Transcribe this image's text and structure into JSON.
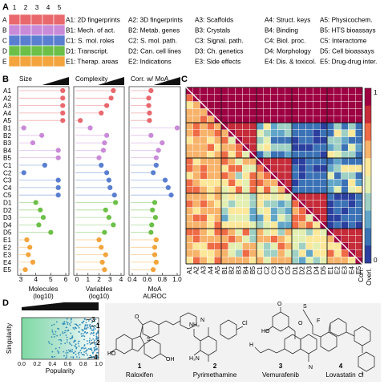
{
  "panels": {
    "a": "A",
    "b": "B",
    "c": "C",
    "d": "D"
  },
  "panel_a": {
    "col_numbers": [
      "1",
      "2",
      "3",
      "4",
      "5"
    ],
    "rows": [
      {
        "letter": "A",
        "color": "#e8686d"
      },
      {
        "letter": "B",
        "color": "#c98ad8"
      },
      {
        "letter": "C",
        "color": "#5a7fd0"
      },
      {
        "letter": "D",
        "color": "#6cc048"
      },
      {
        "letter": "E",
        "color": "#f3a43c"
      }
    ],
    "legend": [
      [
        "A1: 2D fingerprints",
        "A2: 3D fingerprints",
        "A3: Scaffolds",
        "A4: Struct. keys",
        "A5: Physicochem."
      ],
      [
        "B1: Mech. of act.",
        "B2: Metab. genes",
        "B3: Crystals",
        "B4: Binding",
        "B5: HTS bioassays"
      ],
      [
        "C1: S. mol. roles",
        "C2: S. mol. path.",
        "C3: Signal. path.",
        "C4: Biol. proc.",
        "C5: Interactome"
      ],
      [
        "D1: Transcript.",
        "D2: Can. cell lines",
        "D3: Ch. genetics",
        "D4: Morphology",
        "D5: Cell bioassays"
      ],
      [
        "E1: Therap. areas",
        "E2: Indications",
        "E3: Side effects",
        "E4: Dis. & toxicol.",
        "E5: Drug-drug inter."
      ]
    ]
  },
  "panel_b": {
    "row_labels": [
      "A1",
      "A2",
      "A3",
      "A4",
      "A5",
      "B1",
      "B2",
      "B3",
      "B4",
      "B5",
      "C1",
      "C2",
      "C3",
      "C4",
      "C5",
      "D1",
      "D2",
      "D3",
      "D4",
      "D5",
      "E1",
      "E2",
      "E3",
      "E4",
      "E5"
    ],
    "row_colors": [
      "#e8686d",
      "#e8686d",
      "#e8686d",
      "#e8686d",
      "#e8686d",
      "#c98ad8",
      "#c98ad8",
      "#c98ad8",
      "#c98ad8",
      "#c98ad8",
      "#5a7fd0",
      "#5a7fd0",
      "#5a7fd0",
      "#5a7fd0",
      "#5a7fd0",
      "#6cc048",
      "#6cc048",
      "#6cc048",
      "#6cc048",
      "#6cc048",
      "#f3a43c",
      "#f3a43c",
      "#f3a43c",
      "#f3a43c",
      "#f3a43c"
    ],
    "tracks": [
      {
        "title": "Size",
        "xlabel": "Molecules",
        "xlabel2": "(log10)",
        "xlim": [
          3,
          6
        ],
        "ticks": [
          "3",
          "4",
          "5",
          "6"
        ],
        "values": [
          5.8,
          5.8,
          5.8,
          5.8,
          5.8,
          3.2,
          4.4,
          3.8,
          5.5,
          5.5,
          4.6,
          3.2,
          5.5,
          5.5,
          5.5,
          4.0,
          4.3,
          4.5,
          4.2,
          5.0,
          3.4,
          3.6,
          3.5,
          3.8,
          3.3
        ]
      },
      {
        "title": "Complexity",
        "xlabel": "Variables",
        "xlabel2": "(log10)",
        "xlim": [
          0,
          4
        ],
        "ticks": [
          "0",
          "1",
          "2",
          "3",
          "4"
        ],
        "values": [
          3.3,
          3.1,
          2.7,
          2.2,
          0.3,
          1.2,
          2.7,
          2.5,
          2.4,
          2.0,
          2.2,
          2.7,
          2.9,
          3.0,
          3.4,
          3.5,
          2.6,
          2.9,
          3.3,
          2.5,
          2.0,
          2.2,
          2.6,
          2.3,
          2.5
        ]
      },
      {
        "title": "Corr. w/ MoA",
        "xlabel": "MoA",
        "xlabel2": "AUROC",
        "xlim": [
          0.4,
          1.0
        ],
        "ticks": [
          "0.4",
          "0.6",
          "0.8",
          "1.0"
        ],
        "values": [
          0.65,
          0.62,
          0.62,
          0.63,
          0.63,
          1.0,
          0.65,
          0.8,
          0.75,
          0.72,
          0.72,
          0.68,
          0.84,
          0.88,
          0.92,
          0.7,
          0.67,
          0.71,
          0.66,
          0.65,
          0.72,
          0.7,
          0.7,
          0.72,
          0.68
        ]
      }
    ]
  },
  "panel_c": {
    "labels": [
      "A1",
      "A2",
      "A3",
      "A4",
      "A5",
      "B1",
      "B2",
      "B3",
      "B4",
      "B5",
      "C1",
      "C2",
      "C3",
      "C4",
      "C5",
      "D1",
      "D2",
      "D3",
      "D4",
      "D5",
      "E1",
      "E2",
      "E3",
      "E4",
      "E5"
    ],
    "colorbar_ticks": [
      "1",
      "0"
    ],
    "colorbar_labels": [
      "Corr.",
      "Overl."
    ],
    "colors": [
      "#2b3f9e",
      "#3b72b6",
      "#61a6c9",
      "#9fd0c4",
      "#e3efb0",
      "#fde89a",
      "#f8b36b",
      "#ee6b46",
      "#c62b39",
      "#9e0142"
    ]
  },
  "panel_d": {
    "ylabel": "Singularity",
    "xlabel": "Popularity",
    "ticks": [
      "0.0",
      "0.2",
      "0.4",
      "0.6",
      "0.8",
      "1.0"
    ],
    "markers": [
      "1",
      "2",
      "3",
      "4"
    ],
    "molecules": [
      {
        "number": "1",
        "name": "Raloxifen"
      },
      {
        "number": "2",
        "name": "Pyrimethamine"
      },
      {
        "number": "3",
        "name": "Vemurafenib"
      },
      {
        "number": "4",
        "name": "Lovastatin"
      }
    ],
    "struct_labels": [
      "HO",
      "OH",
      "O",
      "N",
      "S",
      "Cl",
      "NH₂",
      "H₂N",
      "O",
      "HO",
      "H",
      "N",
      "S",
      "F",
      "Cl",
      "O"
    ]
  },
  "chart_data": [
    {
      "type": "scatter",
      "title": "Size",
      "xlabel": "Molecules (log10)",
      "xlim": [
        3,
        6
      ],
      "categories": [
        "A1",
        "A2",
        "A3",
        "A4",
        "A5",
        "B1",
        "B2",
        "B3",
        "B4",
        "B5",
        "C1",
        "C2",
        "C3",
        "C4",
        "C5",
        "D1",
        "D2",
        "D3",
        "D4",
        "D5",
        "E1",
        "E2",
        "E3",
        "E4",
        "E5"
      ],
      "values": [
        5.8,
        5.8,
        5.8,
        5.8,
        5.8,
        3.2,
        4.4,
        3.8,
        5.5,
        5.5,
        4.6,
        3.2,
        5.5,
        5.5,
        5.5,
        4.0,
        4.3,
        4.5,
        4.2,
        5.0,
        3.4,
        3.6,
        3.5,
        3.8,
        3.3
      ]
    },
    {
      "type": "scatter",
      "title": "Complexity",
      "xlabel": "Variables (log10)",
      "xlim": [
        0,
        4
      ],
      "categories": [
        "A1",
        "A2",
        "A3",
        "A4",
        "A5",
        "B1",
        "B2",
        "B3",
        "B4",
        "B5",
        "C1",
        "C2",
        "C3",
        "C4",
        "C5",
        "D1",
        "D2",
        "D3",
        "D4",
        "D5",
        "E1",
        "E2",
        "E3",
        "E4",
        "E5"
      ],
      "values": [
        3.3,
        3.1,
        2.7,
        2.2,
        0.3,
        1.2,
        2.7,
        2.5,
        2.4,
        2.0,
        2.2,
        2.7,
        2.9,
        3.0,
        3.4,
        3.5,
        2.6,
        2.9,
        3.3,
        2.5,
        2.0,
        2.2,
        2.6,
        2.3,
        2.5
      ]
    },
    {
      "type": "scatter",
      "title": "Corr. w/ MoA",
      "xlabel": "MoA AUROC",
      "xlim": [
        0.4,
        1.0
      ],
      "categories": [
        "A1",
        "A2",
        "A3",
        "A4",
        "A5",
        "B1",
        "B2",
        "B3",
        "B4",
        "B5",
        "C1",
        "C2",
        "C3",
        "C4",
        "C5",
        "D1",
        "D2",
        "D3",
        "D4",
        "D5",
        "E1",
        "E2",
        "E3",
        "E4",
        "E5"
      ],
      "values": [
        0.65,
        0.62,
        0.62,
        0.63,
        0.63,
        1.0,
        0.65,
        0.8,
        0.75,
        0.72,
        0.72,
        0.68,
        0.84,
        0.88,
        0.92,
        0.7,
        0.67,
        0.71,
        0.66,
        0.65,
        0.72,
        0.7,
        0.7,
        0.72,
        0.68
      ]
    },
    {
      "type": "heatmap",
      "categories": [
        "A1",
        "A2",
        "A3",
        "A4",
        "A5",
        "B1",
        "B2",
        "B3",
        "B4",
        "B5",
        "C1",
        "C2",
        "C3",
        "C4",
        "C5",
        "D1",
        "D2",
        "D3",
        "D4",
        "D5",
        "E1",
        "E2",
        "E3",
        "E4",
        "E5"
      ],
      "value_range": [
        0,
        1
      ],
      "colorbar_labels": [
        "Corr.",
        "Overl."
      ]
    },
    {
      "type": "scatter",
      "xlabel": "Popularity",
      "ylabel": "Singularity",
      "xlim": [
        0,
        1
      ],
      "ylim": [
        0,
        1
      ]
    }
  ]
}
